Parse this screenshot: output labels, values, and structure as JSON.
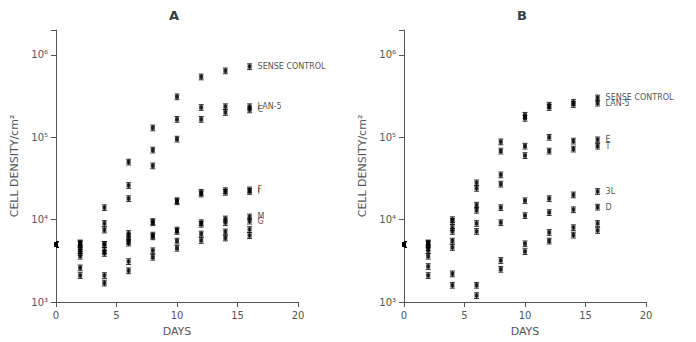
{
  "chart_data": [
    {
      "type": "scatter",
      "title": "A",
      "xlabel": "DAYS",
      "ylabel": "CELL DENSITY/cm²",
      "log": "y",
      "grid": false,
      "legend": false,
      "marker": "square",
      "color": "black",
      "x": [
        0,
        2,
        4,
        6,
        8,
        10,
        12,
        14,
        16
      ],
      "xlim": [
        0,
        20
      ],
      "xticks": [
        0,
        5,
        10,
        15,
        20
      ],
      "ylim": [
        1000,
        2000000
      ],
      "yticks": [
        {
          "value": 1000,
          "label": "10³"
        },
        {
          "value": 10000,
          "label": "10⁴"
        },
        {
          "value": 100000,
          "label": "10⁵"
        },
        {
          "value": 1000000,
          "label": "10⁶"
        }
      ],
      "series": [
        {
          "name": "SENSE CONTROL",
          "values": [
            5000,
            5200,
            14000,
            50000,
            130000,
            310000,
            540000,
            640000,
            720000
          ],
          "yerr": [
            400,
            416,
            1120,
            4000,
            10400,
            24800,
            43200,
            51200,
            57600
          ]
        },
        {
          "name": "LAN-5",
          "values": [
            5000,
            5000,
            9000,
            26000,
            70000,
            165000,
            230000,
            235000,
            235000
          ],
          "yerr": [
            400,
            400,
            720,
            2080,
            5600,
            13200,
            18400,
            18800,
            18800
          ]
        },
        {
          "name": "C",
          "values": [
            5000,
            5200,
            7500,
            18000,
            45000,
            95000,
            165000,
            200000,
            215000
          ],
          "yerr": [
            400,
            416,
            600,
            1440,
            3600,
            7600,
            13200,
            16000,
            17200
          ]
        },
        {
          "name": "F",
          "values": [
            5000,
            4200,
            5000,
            6800,
            9500,
            17000,
            21500,
            22500,
            23000
          ],
          "yerr": [
            400,
            336,
            400,
            544,
            760,
            1360,
            1720,
            1800,
            1840
          ]
        },
        {
          "name": "I",
          "values": [
            5000,
            4500,
            5000,
            6200,
            9200,
            16500,
            20500,
            21500,
            22000
          ],
          "yerr": [
            400,
            360,
            400,
            496,
            736,
            1320,
            1640,
            1720,
            1760
          ]
        },
        {
          "name": "M",
          "values": [
            5000,
            4000,
            4200,
            5500,
            6500,
            7500,
            9200,
            10200,
            10800
          ],
          "yerr": [
            400,
            320,
            336,
            440,
            520,
            600,
            736,
            816,
            864
          ]
        },
        {
          "name": "G",
          "values": [
            5000,
            3600,
            3900,
            5200,
            6200,
            7200,
            8800,
            9200,
            9600
          ],
          "yerr": [
            400,
            288,
            312,
            416,
            496,
            576,
            704,
            736,
            768
          ]
        },
        {
          "values": [
            5000,
            2600,
            2100,
            3100,
            4200,
            5500,
            6700,
            7100,
            7600
          ],
          "yerr": [
            400,
            208,
            168,
            248,
            336,
            440,
            536,
            568,
            608
          ]
        },
        {
          "values": [
            5000,
            2100,
            1700,
            2400,
            3500,
            4500,
            5600,
            6000,
            6400
          ],
          "yerr": [
            400,
            168,
            136,
            192,
            280,
            360,
            448,
            480,
            512
          ]
        }
      ]
    },
    {
      "type": "scatter",
      "title": "B",
      "xlabel": "DAYS",
      "ylabel": "CELL DENSITY/cm²",
      "log": "y",
      "grid": false,
      "legend": false,
      "marker": "square",
      "color": "black",
      "x": [
        0,
        2,
        4,
        6,
        8,
        10,
        12,
        14,
        16
      ],
      "xlim": [
        0,
        20
      ],
      "xticks": [
        0,
        5,
        10,
        15,
        20
      ],
      "ylim": [
        1000,
        2000000
      ],
      "yticks": [
        {
          "value": 1000,
          "label": "10³"
        },
        {
          "value": 10000,
          "label": "10⁴"
        },
        {
          "value": 100000,
          "label": "10⁵"
        },
        {
          "value": 1000000,
          "label": "10⁶"
        }
      ],
      "series": [
        {
          "name": "SENSE CONTROL",
          "values": [
            5000,
            5200,
            10000,
            28000,
            88000,
            185000,
            245000,
            265000,
            300000
          ],
          "yerr": [
            400,
            416,
            800,
            2240,
            7040,
            14800,
            19600,
            21200,
            24000
          ]
        },
        {
          "name": "LAN-5",
          "values": [
            5000,
            5000,
            9500,
            24000,
            68000,
            170000,
            230000,
            250000,
            260000
          ],
          "yerr": [
            400,
            400,
            760,
            1920,
            5440,
            13600,
            18400,
            20000,
            20800
          ]
        },
        {
          "name": "E",
          "values": [
            5000,
            5200,
            8000,
            15000,
            35000,
            78000,
            100000,
            90000,
            93000
          ],
          "yerr": [
            400,
            416,
            640,
            1200,
            2800,
            6240,
            8000,
            7200,
            7440
          ]
        },
        {
          "name": "T",
          "values": [
            5000,
            4600,
            7200,
            13000,
            27000,
            60000,
            68000,
            72000,
            78000
          ],
          "yerr": [
            400,
            368,
            576,
            1040,
            2160,
            4800,
            5440,
            5760,
            6240
          ]
        },
        {
          "name": "3L",
          "values": [
            5000,
            4200,
            5500,
            9000,
            14000,
            17000,
            18000,
            20000,
            22000
          ],
          "yerr": [
            400,
            336,
            440,
            720,
            1120,
            1360,
            1440,
            1600,
            1760
          ]
        },
        {
          "name": "D",
          "values": [
            5000,
            3600,
            4600,
            7200,
            9200,
            11200,
            12200,
            13200,
            14200
          ],
          "yerr": [
            400,
            288,
            368,
            576,
            736,
            896,
            976,
            1056,
            1136
          ]
        },
        {
          "values": [
            5000,
            2700,
            2200,
            1600,
            3200,
            5100,
            7000,
            8000,
            9000
          ],
          "yerr": [
            400,
            216,
            176,
            128,
            256,
            408,
            560,
            640,
            720
          ]
        },
        {
          "values": [
            5000,
            2100,
            1600,
            1200,
            2500,
            4100,
            5500,
            6500,
            7400
          ],
          "yerr": [
            400,
            168,
            128,
            96,
            200,
            328,
            440,
            520,
            592
          ]
        }
      ]
    }
  ]
}
